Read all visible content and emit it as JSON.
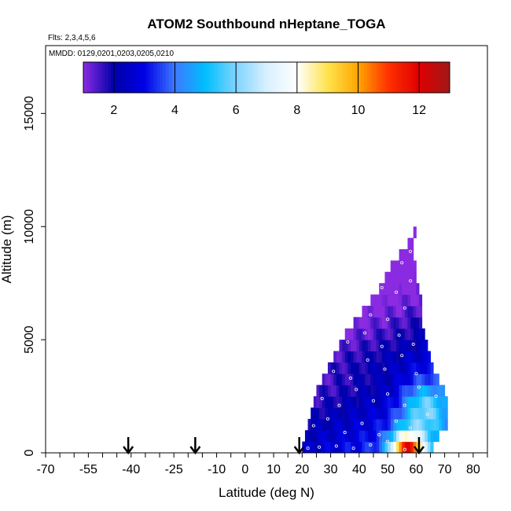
{
  "chart_data": {
    "type": "heatmap",
    "title": "ATOM2 Southbound nHeptane_TOGA",
    "flights_label": "Flts: 2,3,4,5,6",
    "dates_label": "MMDD: 0129,0201,0203,0205,0210",
    "xlabel": "Latitude (deg N)",
    "ylabel": "Altitude (m)",
    "xlim": [
      -70,
      85
    ],
    "ylim": [
      0,
      18000
    ],
    "x_ticks": [
      -70,
      -55,
      -40,
      -25,
      -10,
      0,
      10,
      20,
      30,
      40,
      50,
      60,
      70,
      80
    ],
    "x_tick_labels": [
      "-70",
      "-55",
      "-40",
      "-25",
      "-10",
      "0",
      "10",
      "20",
      "30",
      "40",
      "50",
      "60",
      "70",
      "80"
    ],
    "x_minor_step": 5,
    "y_ticks": [
      0,
      5000,
      10000,
      15000
    ],
    "y_tick_labels": [
      "0",
      "5000",
      "10000",
      "15000"
    ],
    "colorbar": {
      "range": [
        1,
        13
      ],
      "ticks": [
        2,
        4,
        6,
        8,
        10,
        12
      ],
      "tick_labels": [
        "2",
        "4",
        "6",
        "8",
        "10",
        "12"
      ],
      "stops": [
        {
          "v": 1,
          "c": "#8a2be2"
        },
        {
          "v": 2,
          "c": "#0000a8"
        },
        {
          "v": 3,
          "c": "#0000e6"
        },
        {
          "v": 4,
          "c": "#3c78ff"
        },
        {
          "v": 5,
          "c": "#00bfff"
        },
        {
          "v": 6,
          "c": "#7fd4ff"
        },
        {
          "v": 7,
          "c": "#d8f0ff"
        },
        {
          "v": 8,
          "c": "#ffffff"
        },
        {
          "v": 9,
          "c": "#ffe34d"
        },
        {
          "v": 10,
          "c": "#ffa500"
        },
        {
          "v": 11,
          "c": "#ff3000"
        },
        {
          "v": 12,
          "c": "#e00000"
        },
        {
          "v": 13,
          "c": "#a01818"
        }
      ]
    },
    "profile_arrows_lat": [
      -41,
      -17.5,
      19,
      61
    ],
    "altitude_bins_m": [
      0,
      500,
      1000,
      1500,
      2000,
      2500,
      3000,
      3500,
      4000,
      4500,
      5000,
      5500,
      6000,
      6500,
      7000,
      7500,
      8000,
      8500,
      9000,
      9500
    ],
    "lat_range_by_bin": [
      [
        20,
        66
      ],
      [
        21,
        68
      ],
      [
        22,
        71
      ],
      [
        23,
        71
      ],
      [
        24,
        71
      ],
      [
        25,
        70
      ],
      [
        27,
        68
      ],
      [
        29,
        66
      ],
      [
        31,
        65
      ],
      [
        33,
        64
      ],
      [
        35,
        63
      ],
      [
        38,
        62
      ],
      [
        41,
        62
      ],
      [
        44,
        62
      ],
      [
        47,
        61
      ],
      [
        49,
        60
      ],
      [
        51,
        60
      ],
      [
        54,
        59
      ],
      [
        57,
        59
      ],
      [
        59,
        60
      ]
    ],
    "sample_points": [
      {
        "lat": 22,
        "alt": 200
      },
      {
        "lat": 26,
        "alt": 250
      },
      {
        "lat": 32,
        "alt": 300
      },
      {
        "lat": 38,
        "alt": 200
      },
      {
        "lat": 44,
        "alt": 350
      },
      {
        "lat": 50,
        "alt": 500
      },
      {
        "lat": 56,
        "alt": 150
      },
      {
        "lat": 62,
        "alt": 400
      },
      {
        "lat": 24,
        "alt": 1200
      },
      {
        "lat": 29,
        "alt": 1500
      },
      {
        "lat": 35,
        "alt": 900
      },
      {
        "lat": 41,
        "alt": 1300
      },
      {
        "lat": 47,
        "alt": 800
      },
      {
        "lat": 53,
        "alt": 1400
      },
      {
        "lat": 58,
        "alt": 1100
      },
      {
        "lat": 64,
        "alt": 1700
      },
      {
        "lat": 27,
        "alt": 2400
      },
      {
        "lat": 33,
        "alt": 2100
      },
      {
        "lat": 39,
        "alt": 2800
      },
      {
        "lat": 45,
        "alt": 2300
      },
      {
        "lat": 50,
        "alt": 2600
      },
      {
        "lat": 56,
        "alt": 2100
      },
      {
        "lat": 61,
        "alt": 2900
      },
      {
        "lat": 67,
        "alt": 2500
      },
      {
        "lat": 31,
        "alt": 3600
      },
      {
        "lat": 37,
        "alt": 3300
      },
      {
        "lat": 43,
        "alt": 4100
      },
      {
        "lat": 49,
        "alt": 3700
      },
      {
        "lat": 55,
        "alt": 4300
      },
      {
        "lat": 60,
        "alt": 3500
      },
      {
        "lat": 36,
        "alt": 4900
      },
      {
        "lat": 42,
        "alt": 5300
      },
      {
        "lat": 48,
        "alt": 4700
      },
      {
        "lat": 54,
        "alt": 5200
      },
      {
        "lat": 59,
        "alt": 4800
      },
      {
        "lat": 44,
        "alt": 6100
      },
      {
        "lat": 50,
        "alt": 5900
      },
      {
        "lat": 56,
        "alt": 6400
      },
      {
        "lat": 48,
        "alt": 7300
      },
      {
        "lat": 53,
        "alt": 7100
      },
      {
        "lat": 58,
        "alt": 7600
      },
      {
        "lat": 55,
        "alt": 8400
      },
      {
        "lat": 58,
        "alt": 8900
      }
    ]
  }
}
